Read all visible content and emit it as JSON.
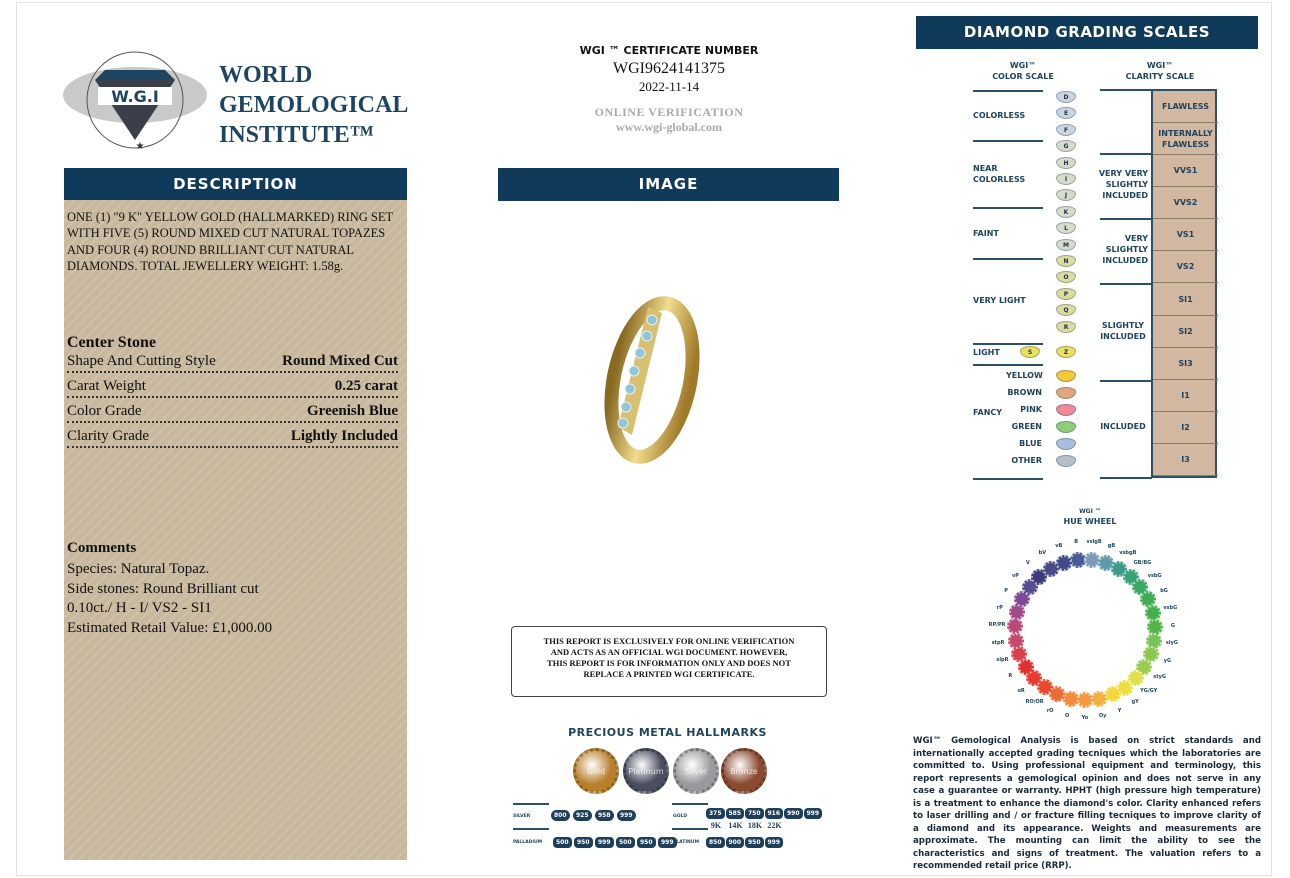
{
  "logo": {
    "seal_text": "WORLD GEMOLOGICAL INSTITUTE",
    "initials": "W.G.I",
    "name_lines": [
      "WORLD",
      "GEMOLOGICAL",
      "INSTITUTE™"
    ]
  },
  "description": {
    "header": "DESCRIPTION",
    "text": "ONE (1) \"9 K\" YELLOW GOLD (HALLMARKED) RING SET WITH FIVE (5) ROUND MIXED CUT NATURAL TOPAZES AND FOUR (4) ROUND BRILLIANT CUT NATURAL DIAMONDS. TOTAL JEWELLERY WEIGHT: 1.58g.",
    "center_stone_title": "Center Stone",
    "rows": [
      {
        "label": "Shape And Cutting Style",
        "value": "Round Mixed Cut"
      },
      {
        "label": "Carat Weight",
        "value": "0.25 carat"
      },
      {
        "label": "Color Grade",
        "value": "Greenish Blue"
      },
      {
        "label": "Clarity Grade",
        "value": "Lightly Included"
      }
    ],
    "comments_title": "Comments",
    "comments": [
      "Species: Natural Topaz.",
      "Side stones: Round Brilliant cut",
      "0.10ct./ H - I/ VS2 - SI1",
      "Estimated Retail Value: £1,000.00"
    ]
  },
  "certificate": {
    "label": "WGI ™ CERTIFICATE NUMBER",
    "number": "WGI9624141375",
    "date": "2022-11-14",
    "verification_label": "ONLINE VERIFICATION",
    "url": "www.wgi-global.com"
  },
  "image": {
    "header": "IMAGE"
  },
  "notice": "THIS REPORT IS EXCLUSIVELY FOR ONLINE VERIFICATION AND ACTS AS AN OFFICIAL WGI DOCUMENT. HOWEVER, THIS REPORT IS FOR INFORMATION ONLY AND DOES NOT REPLACE A PRINTED WGI CERTIFICATE.",
  "hallmarks": {
    "title": "PRECIOUS METAL HALLMARKS",
    "medals": [
      {
        "label": "Gold",
        "color": "#b9802c"
      },
      {
        "label": "Platinum",
        "color": "#4a4e60"
      },
      {
        "label": "Silver",
        "color": "#9a9a9e"
      },
      {
        "label": "Bronze",
        "color": "#8a4a30"
      }
    ],
    "silver": {
      "label": "SILVER",
      "marks": [
        "800",
        "925",
        "958",
        "999"
      ]
    },
    "palladium": {
      "label": "PALLADIUM",
      "marks": [
        "500",
        "950",
        "999",
        "500",
        "950",
        "999"
      ]
    },
    "gold": {
      "label": "GOLD",
      "marks": [
        "375",
        "585",
        "750",
        "916",
        "990",
        "999"
      ],
      "karats": [
        "9K",
        "14K",
        "18K",
        "22K"
      ]
    },
    "platinum": {
      "label": "PLATINUM",
      "marks": [
        "850",
        "900",
        "950",
        "999"
      ]
    }
  },
  "grading": {
    "header": "DIAMOND GRADING  SCALES",
    "color_scale": {
      "title_top": "WGI™",
      "title": "COLOR SCALE",
      "groups": [
        "COLORLESS",
        "NEAR COLORLESS",
        "FAINT",
        "VERY LIGHT",
        "LIGHT",
        "FANCY"
      ],
      "grades": [
        "D",
        "E",
        "F",
        "G",
        "H",
        "I",
        "J",
        "K",
        "L",
        "M",
        "N",
        "O",
        "P",
        "Q",
        "R"
      ],
      "light": [
        "S",
        "Z"
      ],
      "fancy": [
        {
          "label": "YELLOW",
          "color": "#f2c73a"
        },
        {
          "label": "BROWN",
          "color": "#e0a77a"
        },
        {
          "label": "PINK",
          "color": "#ee8a9a"
        },
        {
          "label": "GREEN",
          "color": "#8ccf7a"
        },
        {
          "label": "BLUE",
          "color": "#a9bede"
        },
        {
          "label": "OTHER",
          "color": "#b6c0cc"
        }
      ]
    },
    "clarity_scale": {
      "title_top": "WGI™",
      "title": "CLARITY SCALE",
      "groups": [
        "VERY VERY SLIGHTLY INCLUDED",
        "VERY SLIGHTLY INCLUDED",
        "SLIGHTLY INCLUDED",
        "INCLUDED"
      ],
      "grades": [
        "FLAWLESS",
        "INTERNALLY FLAWLESS",
        "VVS1",
        "VVS2",
        "VS1",
        "VS2",
        "SI1",
        "SI2",
        "SI3",
        "I1",
        "I2",
        "I3"
      ]
    },
    "hue_wheel": {
      "title_top": "WGI ™",
      "title": "HUE WHEEL",
      "hues": [
        {
          "l": "B",
          "c": "#4a5a96"
        },
        {
          "l": "vslgB",
          "c": "#7f9ab8"
        },
        {
          "l": "gB",
          "c": "#5f9aaa"
        },
        {
          "l": "vsbgB",
          "c": "#3f9a8a"
        },
        {
          "l": "GB/BG",
          "c": "#3aa27a"
        },
        {
          "l": "vsbG",
          "c": "#3aa860"
        },
        {
          "l": "bG",
          "c": "#40ad55"
        },
        {
          "l": "vsbG",
          "c": "#45b04e"
        },
        {
          "l": "G",
          "c": "#52b548"
        },
        {
          "l": "slyG",
          "c": "#78c25a"
        },
        {
          "l": "yG",
          "c": "#8cc850"
        },
        {
          "l": "styG",
          "c": "#9acb52"
        },
        {
          "l": "YG/GY",
          "c": "#dfe04a"
        },
        {
          "l": "gY",
          "c": "#eedf40"
        },
        {
          "l": "Y",
          "c": "#f2d83a"
        },
        {
          "l": "Oy",
          "c": "#f2b040"
        },
        {
          "l": "Yo",
          "c": "#f29a40"
        },
        {
          "l": "O",
          "c": "#f28a3a"
        },
        {
          "l": "rO",
          "c": "#ee6a34"
        },
        {
          "l": "RO/OR",
          "c": "#e84a2e"
        },
        {
          "l": "oR",
          "c": "#e83a2e"
        },
        {
          "l": "R",
          "c": "#e03030"
        },
        {
          "l": "slpR",
          "c": "#d8404a"
        },
        {
          "l": "stpR",
          "c": "#c44a6a"
        },
        {
          "l": "RP/PR",
          "c": "#b84a7a"
        },
        {
          "l": "rP",
          "c": "#a04a8a"
        },
        {
          "l": "P",
          "c": "#7a4a92"
        },
        {
          "l": "vP",
          "c": "#5a4a92"
        },
        {
          "l": "V",
          "c": "#3e3a7a"
        },
        {
          "l": "bV",
          "c": "#4a4a88"
        },
        {
          "l": "vB",
          "c": "#404a86"
        }
      ]
    }
  },
  "disclaimer": "WGI™ Gemological Analysis is based on strict standards and internationally accepted grading tecniques which the laboratories are committed to. Using professional equipment and terminology, this report represents a gemological opinion and does not serve in any case a guarantee or warranty. HPHT (high pressure high temperature) is a treatment to enhance the diamond's color. Clarity enhanced refers to laser drilling and / or fracture filling tecniques to improve clarity of a diamond and its appearance. Weights and measurements are approximate. The mounting can limit the ability to see the characteristics and signs of treatment. The valuation refers to a recommended retail price (RRP)."
}
